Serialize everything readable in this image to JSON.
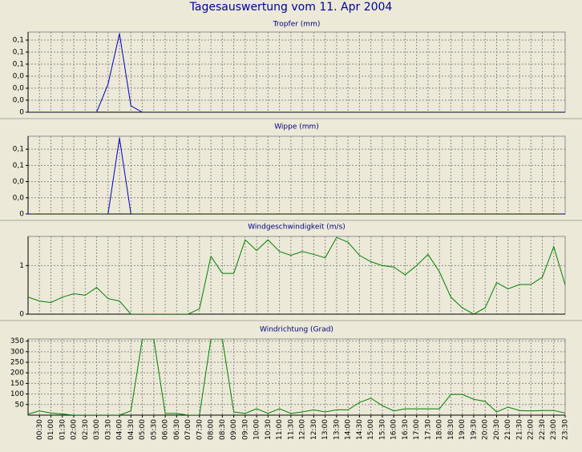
{
  "title": "Tagesauswertung vom 11. Apr 2004",
  "chart_data": [
    {
      "type": "line",
      "title": "Tropfer (mm)",
      "color": "#0000c8",
      "grid": true,
      "ylim": [
        0,
        0.1
      ],
      "yticks": [
        0,
        {
          "value": 0.015,
          "label": "0,0"
        },
        {
          "value": 0.03,
          "label": "0,0"
        },
        {
          "value": 0.045,
          "label": "0,0"
        },
        {
          "value": 0.06,
          "label": "0,1"
        },
        {
          "value": 0.075,
          "label": "0,1"
        },
        {
          "value": 0.09,
          "label": "0,1"
        }
      ],
      "values": [
        0,
        0,
        0,
        0,
        0,
        0,
        0,
        0.035,
        0.098,
        0.008,
        0,
        0,
        0,
        0,
        0,
        0,
        0,
        0,
        0,
        0,
        0,
        0,
        0,
        0,
        0,
        0,
        0,
        0,
        0,
        0,
        0,
        0,
        0,
        0,
        0,
        0,
        0,
        0,
        0,
        0,
        0,
        0,
        0,
        0,
        0,
        0,
        0,
        0
      ]
    },
    {
      "type": "line",
      "title": "Wippe (mm)",
      "color": "#0000c8",
      "grid": true,
      "ylim": [
        0,
        0.096
      ],
      "yticks": [
        0,
        {
          "value": 0.02,
          "label": "0,0"
        },
        {
          "value": 0.04,
          "label": "0,0"
        },
        {
          "value": 0.06,
          "label": "0,1"
        },
        {
          "value": 0.08,
          "label": "0,1"
        }
      ],
      "values": [
        0,
        0,
        0,
        0,
        0,
        0,
        0,
        0,
        0.094,
        0,
        0,
        0,
        0,
        0,
        0,
        0,
        0,
        0,
        0,
        0,
        0,
        0,
        0,
        0,
        0,
        0,
        0,
        0,
        0,
        0,
        0,
        0,
        0,
        0,
        0,
        0,
        0,
        0,
        0,
        0,
        0,
        0,
        0,
        0,
        0,
        0,
        0,
        0
      ]
    },
    {
      "type": "line",
      "title": "Windgeschwindigkeit (m/s)",
      "color": "#008000",
      "grid": true,
      "ylim": [
        0,
        1.6
      ],
      "yticks": [
        0,
        1
      ],
      "values": [
        0.35,
        0.27,
        0.24,
        0.35,
        0.42,
        0.39,
        0.55,
        0.32,
        0.27,
        0,
        0,
        0,
        0,
        0,
        0,
        0.11,
        1.19,
        0.84,
        0.84,
        1.53,
        1.31,
        1.53,
        1.29,
        1.21,
        1.29,
        1.23,
        1.16,
        1.58,
        1.48,
        1.21,
        1.08,
        1.0,
        0.97,
        0.81,
        1.0,
        1.23,
        0.87,
        0.35,
        0.13,
        0,
        0.13,
        0.65,
        0.52,
        0.61,
        0.61,
        0.76,
        1.39,
        0.6
      ]
    },
    {
      "type": "line",
      "title": "Windrichtung (Grad)",
      "color": "#008000",
      "grid": true,
      "ylim": [
        0,
        360
      ],
      "yticks": [
        50,
        100,
        150,
        200,
        250,
        300,
        350
      ],
      "categories": [
        null,
        "00:30",
        "01:00",
        "01:30",
        "02:00",
        "02:30",
        "03:00",
        "03:30",
        "04:00",
        "04:30",
        "05:00",
        "05:30",
        "06:00",
        "06:30",
        "07:00",
        "07:30",
        "08:00",
        "08:30",
        "09:00",
        "09:30",
        "10:00",
        "10:30",
        "11:00",
        "11:30",
        "12:00",
        "12:30",
        "13:00",
        "13:30",
        "14:00",
        "14:30",
        "15:00",
        "15:30",
        "16:00",
        "16:30",
        "17:00",
        "17:30",
        "18:00",
        "18:30",
        "19:00",
        "19:30",
        "20:00",
        "20:30",
        "21:00",
        "21:30",
        "22:00",
        "22:30",
        "23:00",
        "23:30"
      ],
      "values": [
        5,
        20,
        10,
        5,
        0,
        0,
        0,
        0,
        0,
        20,
        360,
        360,
        8,
        8,
        0,
        0,
        360,
        360,
        15,
        8,
        30,
        8,
        30,
        8,
        15,
        25,
        15,
        25,
        25,
        60,
        80,
        45,
        20,
        30,
        30,
        30,
        30,
        98,
        98,
        75,
        65,
        15,
        38,
        22,
        20,
        22,
        22,
        10
      ]
    }
  ]
}
